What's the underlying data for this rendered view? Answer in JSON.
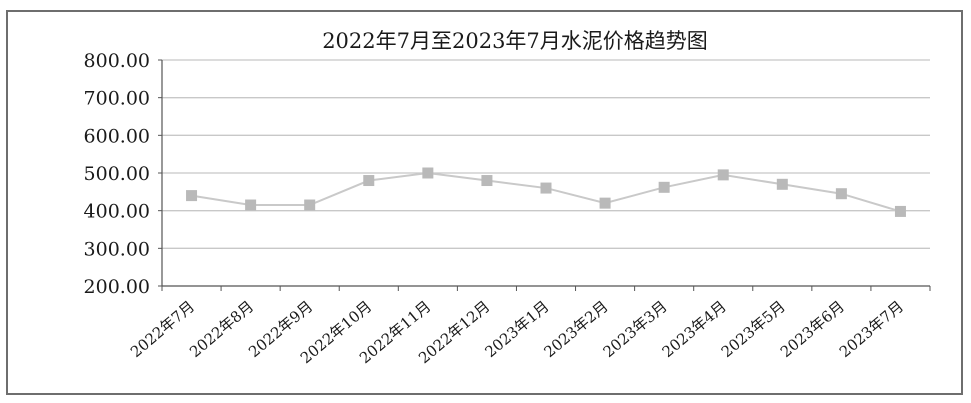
{
  "chart_data": {
    "type": "line",
    "title": "2022年7月至2023年7月水泥价格趋势图",
    "xlabel": "",
    "ylabel": "",
    "categories": [
      "2022年7月",
      "2022年8月",
      "2022年9月",
      "2022年10月",
      "2022年11月",
      "2022年12月",
      "2023年1月",
      "2023年2月",
      "2023年3月",
      "2023年4月",
      "2023年5月",
      "2023年6月",
      "2023年7月"
    ],
    "series": [
      {
        "values": [
          440,
          415,
          415,
          480,
          500,
          480,
          460,
          420,
          462,
          495,
          470,
          445,
          398
        ]
      }
    ],
    "ylim": [
      200,
      800
    ],
    "yticks": [
      "200.00",
      "300.00",
      "400.00",
      "500.00",
      "600.00",
      "700.00",
      "800.00"
    ],
    "grid": true,
    "legend": "none",
    "colors": {
      "line": "#c9c9c9",
      "marker": "#b9b9b9",
      "grid": "#c8c8c8",
      "axis": "#555555"
    }
  }
}
